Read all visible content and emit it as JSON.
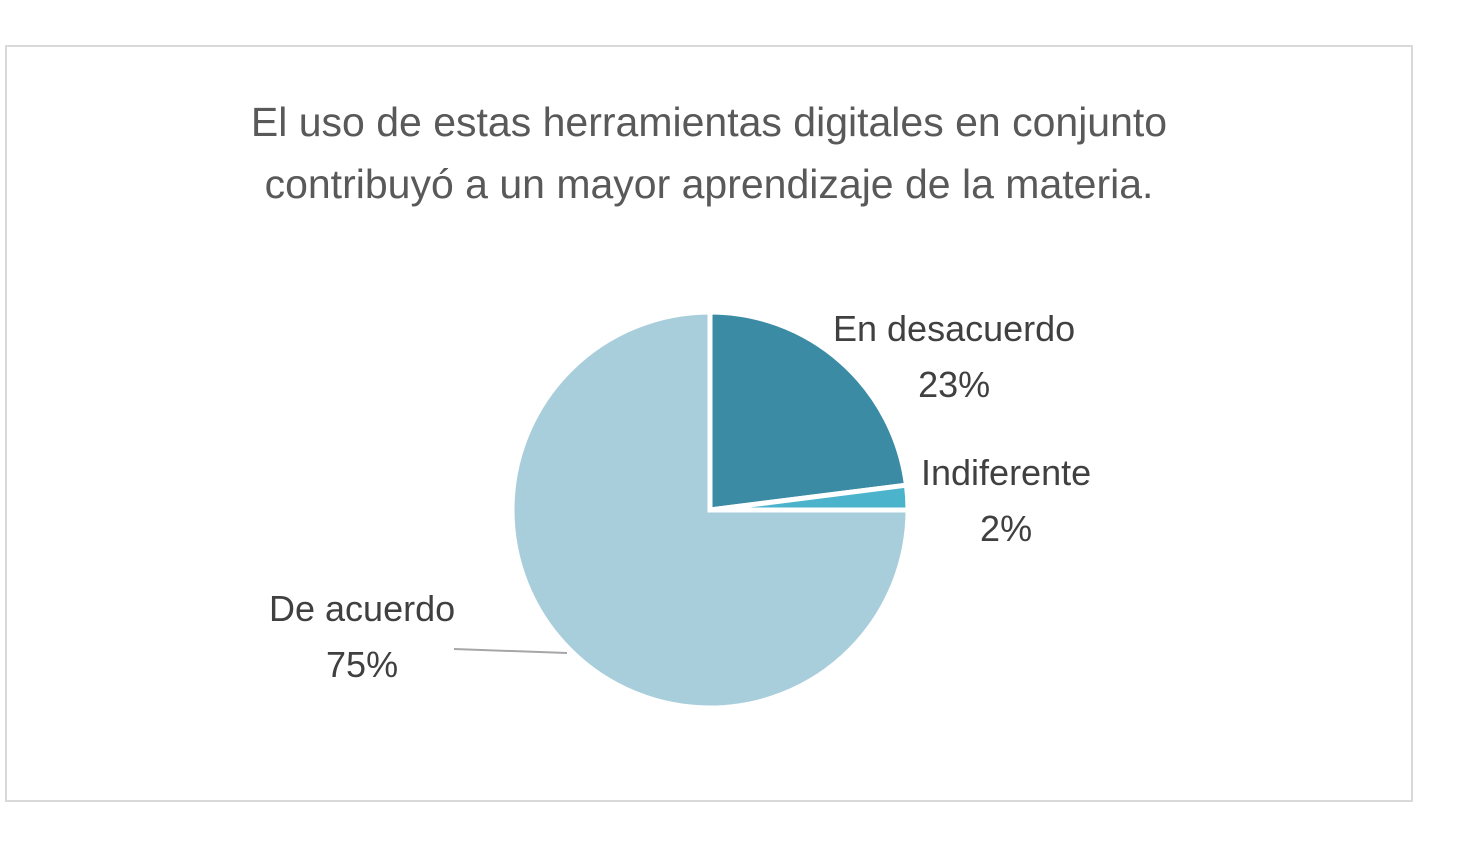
{
  "chart_data": {
    "type": "pie",
    "title": "El uso de estas herramientas digitales en conjunto contribuyó a un mayor aprendizaje de la materia.",
    "title_lines": [
      "El uso de estas herramientas digitales en conjunto",
      "contribuyó a un mayor aprendizaje de la materia."
    ],
    "categories": [
      "En desacuerdo",
      "Indiferente",
      "De acuerdo"
    ],
    "values": [
      23,
      2,
      75
    ],
    "value_labels": [
      "23%",
      "2%",
      "75%"
    ],
    "colors": [
      "#3b8ba5",
      "#4bb3cc",
      "#a9cedb"
    ],
    "legend": "none"
  }
}
